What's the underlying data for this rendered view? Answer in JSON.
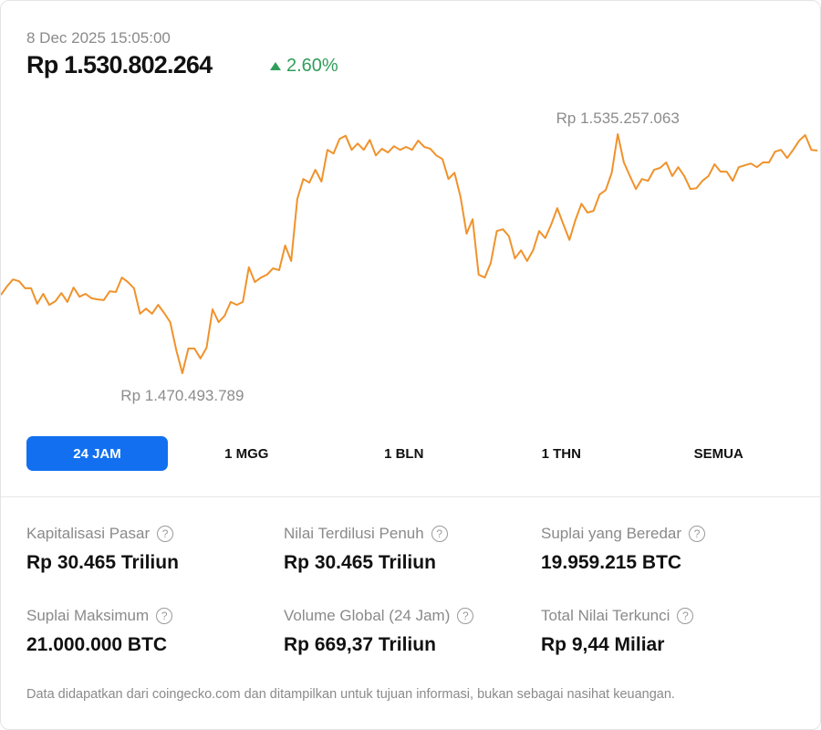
{
  "header": {
    "date": "8 Dec 2025 15:05:00",
    "price": "Rp 1.530.802.264",
    "change": "2.60%",
    "change_color": "#2f9e5a"
  },
  "chart_data": {
    "type": "line",
    "title": "",
    "xlabel": "",
    "ylabel": "",
    "unit": "juta Rp",
    "line_color": "#f0922b",
    "grid": false,
    "high_label": "Rp 1.535.257.063",
    "low_label": "Rp 1.470.493.789",
    "ylim": [
      1470.494,
      1535.257
    ],
    "values": [
      1491.7,
      1494.0,
      1495.9,
      1495.4,
      1493.5,
      1493.5,
      1489.3,
      1492.0,
      1489.0,
      1490.0,
      1492.2,
      1489.8,
      1493.7,
      1491.2,
      1492.0,
      1490.8,
      1490.5,
      1490.3,
      1492.7,
      1492.5,
      1496.4,
      1495.2,
      1493.5,
      1486.6,
      1488.0,
      1486.6,
      1489.0,
      1486.8,
      1484.3,
      1476.7,
      1470.494,
      1477.2,
      1477.2,
      1474.5,
      1477.4,
      1487.8,
      1484.3,
      1486.1,
      1489.8,
      1489.0,
      1489.8,
      1499.2,
      1495.2,
      1496.4,
      1497.2,
      1498.9,
      1498.4,
      1505.1,
      1500.9,
      1517.7,
      1523.1,
      1522.1,
      1525.6,
      1522.4,
      1531.0,
      1530.0,
      1534.0,
      1534.8,
      1531.0,
      1532.7,
      1531.0,
      1533.7,
      1529.5,
      1531.3,
      1530.3,
      1532.0,
      1531.0,
      1531.8,
      1531.0,
      1533.5,
      1531.8,
      1531.3,
      1529.5,
      1528.5,
      1523.1,
      1524.8,
      1518.2,
      1508.3,
      1512.2,
      1497.2,
      1496.4,
      1500.4,
      1509.0,
      1509.5,
      1507.6,
      1501.6,
      1503.8,
      1500.9,
      1503.8,
      1509.0,
      1507.1,
      1510.8,
      1515.2,
      1510.8,
      1506.6,
      1512.0,
      1516.4,
      1514.0,
      1514.5,
      1518.9,
      1520.1,
      1524.8,
      1535.257,
      1527.6,
      1523.9,
      1520.4,
      1523.1,
      1522.6,
      1525.6,
      1526.1,
      1527.6,
      1523.9,
      1526.3,
      1523.9,
      1520.4,
      1520.6,
      1522.6,
      1523.9,
      1527.1,
      1525.1,
      1525.1,
      1522.6,
      1526.3,
      1526.8,
      1527.3,
      1526.3,
      1527.6,
      1527.6,
      1530.5,
      1531.0,
      1528.8,
      1531.0,
      1533.5,
      1535.0,
      1531.0,
      1530.8
    ]
  },
  "ranges": [
    {
      "label": "24 JAM",
      "active": true
    },
    {
      "label": "1 MGG"
    },
    {
      "label": "1 BLN"
    },
    {
      "label": "1 THN"
    },
    {
      "label": "SEMUA"
    }
  ],
  "stats": [
    {
      "label": "Kapitalisasi Pasar",
      "value": "Rp 30.465 Triliun"
    },
    {
      "label": "Nilai Terdilusi Penuh",
      "value": "Rp 30.465 Triliun"
    },
    {
      "label": "Suplai yang Beredar",
      "value": "19.959.215 BTC"
    },
    {
      "label": "Suplai Maksimum",
      "value": "21.000.000 BTC"
    },
    {
      "label": "Volume Global (24 Jam)",
      "value": "Rp 669,37 Triliun"
    },
    {
      "label": "Total Nilai Terkunci",
      "value": "Rp 9,44 Miliar"
    }
  ],
  "help_glyph": "?",
  "footer": "Data didapatkan dari coingecko.com dan ditampilkan untuk tujuan informasi, bukan sebagai nasihat keuangan."
}
